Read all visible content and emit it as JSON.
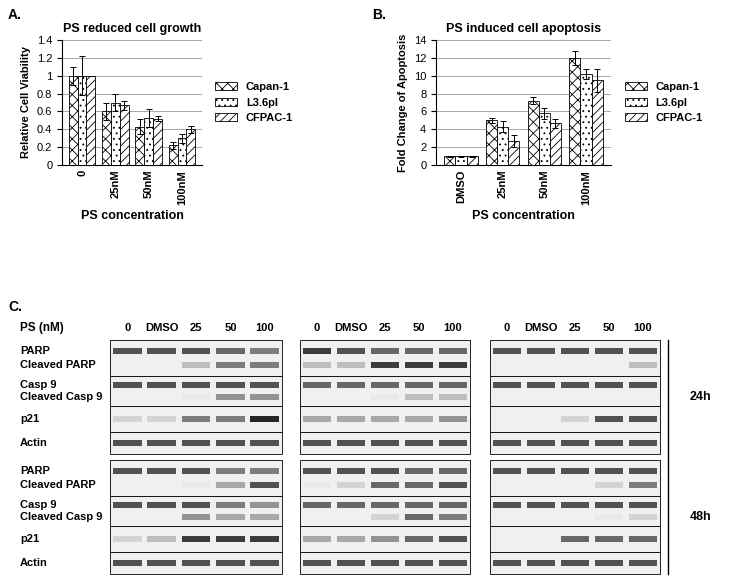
{
  "chart_data": [
    {
      "type": "bar",
      "panel_label": "A.",
      "title": "PS reduced cell growth",
      "x_label": "PS concentration",
      "y_label": "Relative Cell Viability",
      "categories": [
        "0",
        "25nM",
        "50nM",
        "100nM"
      ],
      "series": [
        {
          "name": "Capan-1",
          "color": "#ffffff",
          "values": [
            1.0,
            0.6,
            0.43,
            0.22
          ],
          "errors": [
            0.1,
            0.1,
            0.08,
            0.04
          ]
        },
        {
          "name": "L3.6pl",
          "color": "#ffffff",
          "values": [
            1.0,
            0.7,
            0.53,
            0.3
          ],
          "errors": [
            0.22,
            0.1,
            0.1,
            0.05
          ]
        },
        {
          "name": "CFPAC-1",
          "color": "#ffffff",
          "values": [
            1.0,
            0.67,
            0.52,
            0.4
          ],
          "errors": [
            0.0,
            0.05,
            0.03,
            0.04
          ]
        }
      ],
      "ylim": [
        0,
        1.4
      ],
      "yticks": [
        0,
        0.2,
        0.4,
        0.6,
        0.8,
        1,
        1.2,
        1.4
      ],
      "grid": true,
      "legend": "right"
    },
    {
      "type": "bar",
      "panel_label": "B.",
      "title": "PS induced cell apoptosis",
      "x_label": "PS concentration",
      "y_label": "Fold Change of Apoptosis",
      "categories": [
        "DMSO",
        "25nM",
        "50nM",
        "100nM"
      ],
      "series": [
        {
          "name": "Capan-1",
          "color": "#ffffff",
          "values": [
            1.0,
            5.0,
            7.2,
            12.0
          ],
          "errors": [
            0.05,
            0.3,
            0.4,
            0.8
          ]
        },
        {
          "name": "L3.6pl",
          "color": "#ffffff",
          "values": [
            1.0,
            4.3,
            5.8,
            10.2
          ],
          "errors": [
            0.05,
            0.6,
            0.6,
            0.6
          ]
        },
        {
          "name": "CFPAC-1",
          "color": "#ffffff",
          "values": [
            1.0,
            2.7,
            4.7,
            9.5
          ],
          "errors": [
            0.05,
            0.7,
            0.5,
            1.3
          ]
        }
      ],
      "ylim": [
        0,
        14
      ],
      "yticks": [
        0,
        2,
        4,
        6,
        8,
        10,
        12,
        14
      ],
      "grid": true,
      "legend": "right"
    }
  ],
  "western_blot": {
    "panel_label": "C.",
    "treatment_label": "PS (nM)",
    "lanes": [
      "0",
      "DMSO",
      "25",
      "50",
      "100"
    ],
    "row_labels": [
      "PARP",
      "Cleaved PARP",
      "Casp 9",
      "Cleaved Casp 9",
      "p21",
      "Actin"
    ],
    "timepoints": [
      {
        "label": "24h",
        "blots": [
          [
            [
              0.8,
              0.8,
              0.8,
              0.7,
              0.6
            ],
            [
              0,
              0,
              0.3,
              0.6,
              0.6
            ],
            [
              0.8,
              0.8,
              0.8,
              0.8,
              0.8
            ],
            [
              0,
              0,
              0.1,
              0.5,
              0.5
            ],
            [
              0.2,
              0.2,
              0.6,
              0.6,
              1.0
            ],
            [
              0.8,
              0.8,
              0.8,
              0.8,
              0.8
            ]
          ],
          [
            [
              0.9,
              0.8,
              0.7,
              0.7,
              0.7
            ],
            [
              0.3,
              0.3,
              0.9,
              0.9,
              0.9
            ],
            [
              0.7,
              0.7,
              0.7,
              0.7,
              0.7
            ],
            [
              0,
              0,
              0.1,
              0.3,
              0.3
            ],
            [
              0.4,
              0.4,
              0.4,
              0.4,
              0.5
            ],
            [
              0.8,
              0.8,
              0.8,
              0.8,
              0.8
            ]
          ],
          [
            [
              0.8,
              0.8,
              0.8,
              0.8,
              0.8
            ],
            [
              0,
              0,
              0,
              0,
              0.3
            ],
            [
              0.8,
              0.8,
              0.8,
              0.8,
              0.8
            ],
            [
              0,
              0,
              0,
              0,
              0
            ],
            [
              0,
              0,
              0.2,
              0.8,
              0.8
            ],
            [
              0.8,
              0.8,
              0.8,
              0.8,
              0.8
            ]
          ]
        ]
      },
      {
        "label": "48h",
        "blots": [
          [
            [
              0.8,
              0.8,
              0.8,
              0.6,
              0.6
            ],
            [
              0,
              0,
              0.1,
              0.4,
              0.8
            ],
            [
              0.8,
              0.8,
              0.8,
              0.6,
              0.5
            ],
            [
              0,
              0,
              0.5,
              0.4,
              0.4
            ],
            [
              0.2,
              0.3,
              0.9,
              0.9,
              0.9
            ],
            [
              0.8,
              0.8,
              0.8,
              0.8,
              0.8
            ]
          ],
          [
            [
              0.8,
              0.8,
              0.8,
              0.7,
              0.7
            ],
            [
              0.1,
              0.2,
              0.7,
              0.7,
              0.8
            ],
            [
              0.7,
              0.7,
              0.7,
              0.7,
              0.7
            ],
            [
              0,
              0,
              0.2,
              0.7,
              0.6
            ],
            [
              0.4,
              0.4,
              0.5,
              0.7,
              0.8
            ],
            [
              0.8,
              0.8,
              0.8,
              0.8,
              0.8
            ]
          ],
          [
            [
              0.8,
              0.8,
              0.8,
              0.8,
              0.8
            ],
            [
              0,
              0,
              0,
              0.2,
              0.6
            ],
            [
              0.8,
              0.8,
              0.8,
              0.8,
              0.8
            ],
            [
              0,
              0,
              0,
              0.1,
              0.2
            ],
            [
              0,
              0,
              0.7,
              0.7,
              0.7
            ],
            [
              0.8,
              0.8,
              0.8,
              0.8,
              0.8
            ]
          ]
        ]
      }
    ]
  }
}
